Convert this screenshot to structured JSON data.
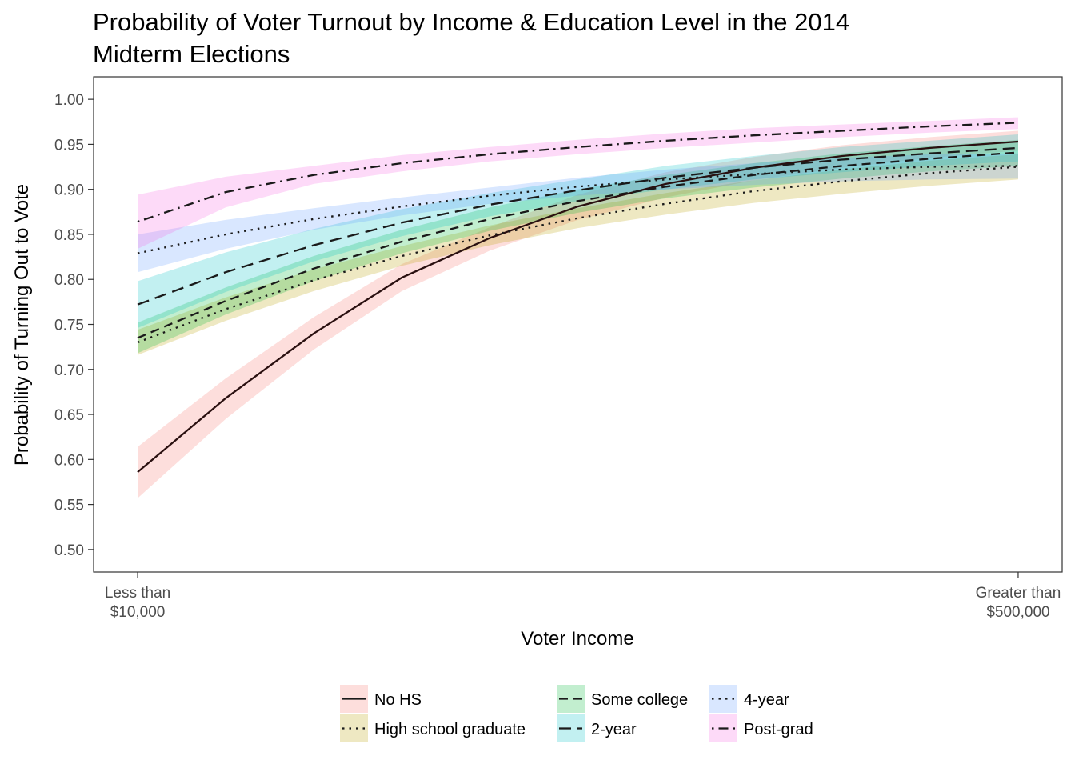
{
  "chart_data": {
    "type": "line",
    "title": "Probability of Voter Turnout by Income & Education Level in the 2014 Midterm Elections",
    "title_lines": [
      "Probability of Voter Turnout by Income & Education Level in the 2014",
      "Midterm Elections"
    ],
    "xlabel": "Voter Income",
    "ylabel": "Probability of Turning Out to Vote",
    "x_ticks": [
      {
        "x": 0,
        "lines": [
          "Less than",
          "$10,000"
        ]
      },
      {
        "x": 1,
        "lines": [
          "Greater than",
          "$500,000"
        ]
      }
    ],
    "xlim": [
      -0.05,
      1.05
    ],
    "ylim": [
      0.475,
      1.025
    ],
    "y_ticks": [
      0.5,
      0.55,
      0.6,
      0.65,
      0.7,
      0.75,
      0.8,
      0.85,
      0.9,
      0.95,
      1.0
    ],
    "y_tick_labels": [
      "0.50",
      "0.55",
      "0.60",
      "0.65",
      "0.70",
      "0.75",
      "0.80",
      "0.85",
      "0.90",
      "0.95",
      "1.00"
    ],
    "grid": false,
    "legend_position": "bottom",
    "series": [
      {
        "name": "No HS",
        "color": "#f8766d",
        "dash": "solid",
        "x": [
          0,
          0.1,
          0.2,
          0.3,
          0.4,
          0.5,
          0.6,
          0.7,
          0.8,
          0.9,
          1.0
        ],
        "y": [
          0.586,
          0.668,
          0.74,
          0.802,
          0.846,
          0.881,
          0.906,
          0.924,
          0.937,
          0.946,
          0.953
        ],
        "lower": [
          0.557,
          0.645,
          0.722,
          0.787,
          0.832,
          0.866,
          0.891,
          0.91,
          0.924,
          0.935,
          0.943
        ],
        "upper": [
          0.614,
          0.69,
          0.758,
          0.817,
          0.858,
          0.894,
          0.919,
          0.936,
          0.949,
          0.958,
          0.965
        ]
      },
      {
        "name": "High school graduate",
        "color": "#b79f00",
        "dash": "dotted",
        "x": [
          0,
          0.1,
          0.2,
          0.3,
          0.4,
          0.5,
          0.6,
          0.7,
          0.8,
          0.9,
          1.0
        ],
        "y": [
          0.73,
          0.767,
          0.799,
          0.826,
          0.849,
          0.868,
          0.884,
          0.898,
          0.909,
          0.918,
          0.925
        ],
        "lower": [
          0.716,
          0.754,
          0.787,
          0.815,
          0.838,
          0.857,
          0.872,
          0.885,
          0.895,
          0.904,
          0.911
        ],
        "upper": [
          0.744,
          0.78,
          0.811,
          0.837,
          0.86,
          0.879,
          0.896,
          0.91,
          0.922,
          0.932,
          0.939
        ]
      },
      {
        "name": "Some college",
        "color": "#00ba38",
        "dash": "dashed",
        "x": [
          0,
          0.1,
          0.2,
          0.3,
          0.4,
          0.5,
          0.6,
          0.7,
          0.8,
          0.9,
          1.0
        ],
        "y": [
          0.735,
          0.776,
          0.812,
          0.842,
          0.867,
          0.887,
          0.903,
          0.916,
          0.926,
          0.934,
          0.941
        ],
        "lower": [
          0.718,
          0.761,
          0.798,
          0.829,
          0.854,
          0.874,
          0.89,
          0.902,
          0.912,
          0.92,
          0.926
        ],
        "upper": [
          0.752,
          0.791,
          0.826,
          0.855,
          0.88,
          0.9,
          0.916,
          0.929,
          0.94,
          0.948,
          0.955
        ]
      },
      {
        "name": "2-year",
        "color": "#00bfc4",
        "dash": "longdash",
        "x": [
          0,
          0.1,
          0.2,
          0.3,
          0.4,
          0.5,
          0.6,
          0.7,
          0.8,
          0.9,
          1.0
        ],
        "y": [
          0.772,
          0.808,
          0.838,
          0.863,
          0.883,
          0.899,
          0.913,
          0.924,
          0.933,
          0.94,
          0.946
        ],
        "lower": [
          0.746,
          0.786,
          0.82,
          0.848,
          0.87,
          0.887,
          0.9,
          0.911,
          0.919,
          0.926,
          0.931
        ],
        "upper": [
          0.798,
          0.83,
          0.856,
          0.878,
          0.896,
          0.911,
          0.926,
          0.937,
          0.947,
          0.954,
          0.961
        ]
      },
      {
        "name": "4-year",
        "color": "#619cff",
        "dash": "dotted",
        "x": [
          0,
          0.1,
          0.2,
          0.3,
          0.4,
          0.5,
          0.6,
          0.7,
          0.8,
          0.9,
          1.0
        ],
        "y": [
          0.829,
          0.85,
          0.867,
          0.881,
          0.893,
          0.903,
          0.911,
          0.917,
          0.922,
          0.925,
          0.926
        ],
        "lower": [
          0.808,
          0.834,
          0.855,
          0.871,
          0.884,
          0.893,
          0.9,
          0.905,
          0.909,
          0.911,
          0.912
        ],
        "upper": [
          0.85,
          0.866,
          0.879,
          0.891,
          0.902,
          0.913,
          0.922,
          0.929,
          0.935,
          0.939,
          0.94
        ]
      },
      {
        "name": "Post-grad",
        "color": "#f564e3",
        "dash": "dotdash",
        "x": [
          0,
          0.1,
          0.2,
          0.3,
          0.4,
          0.5,
          0.6,
          0.7,
          0.8,
          0.9,
          1.0
        ],
        "y": [
          0.864,
          0.897,
          0.916,
          0.929,
          0.939,
          0.947,
          0.954,
          0.96,
          0.965,
          0.97,
          0.974
        ],
        "lower": [
          0.834,
          0.88,
          0.906,
          0.92,
          0.931,
          0.939,
          0.946,
          0.952,
          0.958,
          0.963,
          0.967
        ],
        "upper": [
          0.894,
          0.914,
          0.926,
          0.938,
          0.947,
          0.955,
          0.962,
          0.968,
          0.972,
          0.976,
          0.98
        ]
      }
    ]
  }
}
